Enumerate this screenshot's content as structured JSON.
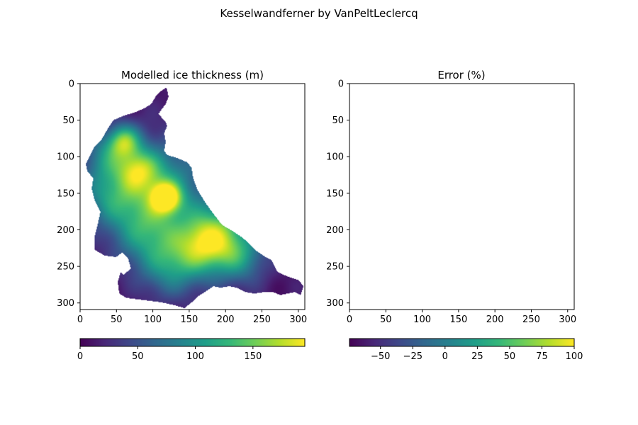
{
  "figure": {
    "suptitle": "Kesselwandferner by VanPeltLeclercq"
  },
  "chart_data": [
    {
      "type": "heatmap",
      "title": "Modelled ice thickness (m)",
      "x_ticks": [
        "0",
        "50",
        "100",
        "150",
        "200",
        "250",
        "300"
      ],
      "y_ticks": [
        "0",
        "50",
        "100",
        "150",
        "200",
        "250",
        "300"
      ],
      "xlim": [
        0,
        309
      ],
      "ylim": [
        309,
        0
      ],
      "y_inverted": true,
      "colormap": "viridis",
      "colorbar": {
        "orientation": "horizontal",
        "range": [
          0,
          195
        ],
        "ticks": [
          "0",
          "50",
          "100",
          "150"
        ],
        "tick_values": [
          0,
          50,
          100,
          150
        ]
      },
      "glacier_outline": [
        [
          118,
          6
        ],
        [
          120,
          8
        ],
        [
          122,
          18
        ],
        [
          118,
          28
        ],
        [
          112,
          36
        ],
        [
          108,
          42
        ],
        [
          112,
          46
        ],
        [
          118,
          52
        ],
        [
          120,
          58
        ],
        [
          116,
          68
        ],
        [
          118,
          80
        ],
        [
          116,
          92
        ],
        [
          120,
          98
        ],
        [
          134,
          102
        ],
        [
          148,
          108
        ],
        [
          154,
          116
        ],
        [
          156,
          130
        ],
        [
          162,
          146
        ],
        [
          172,
          162
        ],
        [
          182,
          176
        ],
        [
          196,
          194
        ],
        [
          210,
          202
        ],
        [
          222,
          210
        ],
        [
          232,
          218
        ],
        [
          244,
          230
        ],
        [
          256,
          238
        ],
        [
          264,
          242
        ],
        [
          268,
          250
        ],
        [
          272,
          258
        ],
        [
          280,
          262
        ],
        [
          290,
          266
        ],
        [
          302,
          270
        ],
        [
          308,
          278
        ],
        [
          304,
          290
        ],
        [
          296,
          286
        ],
        [
          286,
          288
        ],
        [
          276,
          290
        ],
        [
          266,
          286
        ],
        [
          254,
          286
        ],
        [
          240,
          288
        ],
        [
          228,
          286
        ],
        [
          216,
          280
        ],
        [
          206,
          278
        ],
        [
          194,
          280
        ],
        [
          184,
          278
        ],
        [
          172,
          286
        ],
        [
          162,
          292
        ],
        [
          154,
          300
        ],
        [
          144,
          308
        ],
        [
          130,
          304
        ],
        [
          112,
          300
        ],
        [
          96,
          298
        ],
        [
          80,
          296
        ],
        [
          64,
          294
        ],
        [
          54,
          288
        ],
        [
          52,
          272
        ],
        [
          56,
          258
        ],
        [
          70,
          254
        ],
        [
          66,
          240
        ],
        [
          58,
          232
        ],
        [
          50,
          238
        ],
        [
          34,
          236
        ],
        [
          20,
          228
        ],
        [
          20,
          210
        ],
        [
          24,
          194
        ],
        [
          28,
          176
        ],
        [
          20,
          160
        ],
        [
          16,
          144
        ],
        [
          18,
          130
        ],
        [
          10,
          120
        ],
        [
          8,
          110
        ],
        [
          14,
          98
        ],
        [
          20,
          86
        ],
        [
          30,
          76
        ],
        [
          38,
          62
        ],
        [
          46,
          50
        ],
        [
          60,
          44
        ],
        [
          74,
          40
        ],
        [
          88,
          34
        ],
        [
          98,
          28
        ],
        [
          104,
          18
        ],
        [
          112,
          10
        ]
      ],
      "thickness_peaks": [
        {
          "x": 118,
          "y": 156,
          "value": 190,
          "r": 14
        },
        {
          "x": 60,
          "y": 78,
          "value": 150,
          "r": 16
        },
        {
          "x": 80,
          "y": 118,
          "value": 130,
          "r": 20
        },
        {
          "x": 172,
          "y": 220,
          "value": 160,
          "r": 28
        },
        {
          "x": 112,
          "y": 138,
          "value": 115,
          "r": 44
        },
        {
          "x": 40,
          "y": 152,
          "value": 100,
          "r": 28
        },
        {
          "x": 90,
          "y": 200,
          "value": 110,
          "r": 34
        },
        {
          "x": 220,
          "y": 238,
          "value": 100,
          "r": 26
        },
        {
          "x": 126,
          "y": 250,
          "value": 105,
          "r": 30
        },
        {
          "x": 34,
          "y": 100,
          "value": 85,
          "r": 22
        },
        {
          "x": 196,
          "y": 196,
          "value": 90,
          "r": 30
        }
      ],
      "holes": [
        [
          [
            50,
            238
          ],
          [
            58,
            232
          ],
          [
            66,
            240
          ],
          [
            70,
            254
          ],
          [
            60,
            262
          ],
          [
            52,
            256
          ]
        ],
        [
          [
            178,
            290
          ],
          [
            196,
            292
          ],
          [
            194,
            298
          ],
          [
            178,
            296
          ]
        ],
        [
          [
            204,
            286
          ],
          [
            232,
            288
          ],
          [
            230,
            294
          ],
          [
            206,
            292
          ]
        ],
        [
          [
            238,
            288
          ],
          [
            258,
            292
          ],
          [
            256,
            296
          ],
          [
            240,
            294
          ]
        ]
      ]
    },
    {
      "type": "heatmap",
      "title": "Error (%)",
      "x_ticks": [
        "0",
        "50",
        "100",
        "150",
        "200",
        "250",
        "300"
      ],
      "y_ticks": [
        "0",
        "50",
        "100",
        "150",
        "200",
        "250",
        "300"
      ],
      "xlim": [
        0,
        309
      ],
      "ylim": [
        309,
        0
      ],
      "y_inverted": true,
      "colormap": "viridis",
      "values": [],
      "colorbar": {
        "orientation": "horizontal",
        "range": [
          -74,
          100
        ],
        "ticks": [
          "−50",
          "−25",
          "0",
          "25",
          "50",
          "75",
          "100"
        ],
        "tick_values": [
          -50,
          -25,
          0,
          25,
          50,
          75,
          100
        ]
      }
    }
  ]
}
